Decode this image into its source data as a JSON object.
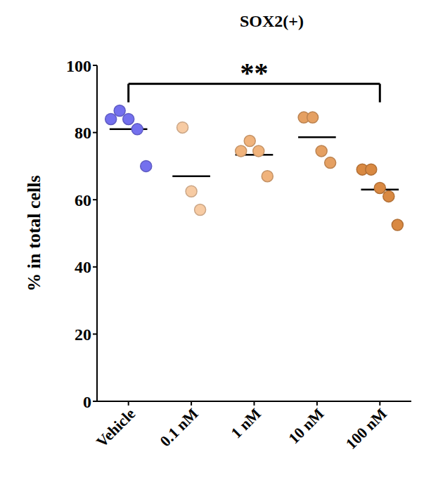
{
  "chart_data": {
    "type": "scatter",
    "title": "SOX2(+)",
    "y_label": "% in total cells",
    "categories": [
      "Vehicle",
      "0.1 nM",
      "1 nM",
      "10 nM",
      "100 nM"
    ],
    "points": [
      [
        84,
        86.5,
        84,
        81,
        70
      ],
      [
        81.5,
        62.5,
        57
      ],
      [
        74.5,
        77.5,
        74.5,
        67
      ],
      [
        84.5,
        84.5,
        74.5,
        71
      ],
      [
        69,
        69,
        63.5,
        61,
        52.5
      ]
    ],
    "means": [
      81,
      67,
      73.4,
      78.6,
      63
    ],
    "colors": [
      "#7470ee",
      "#f7cba3",
      "#f0b37c",
      "#e5a062",
      "#d98942"
    ],
    "ylim": [
      0,
      100
    ],
    "yticks": [
      0,
      20,
      40,
      60,
      80,
      100
    ],
    "annotations": [
      {
        "text": "**",
        "from": "Vehicle",
        "to": "100 nM"
      }
    ]
  }
}
